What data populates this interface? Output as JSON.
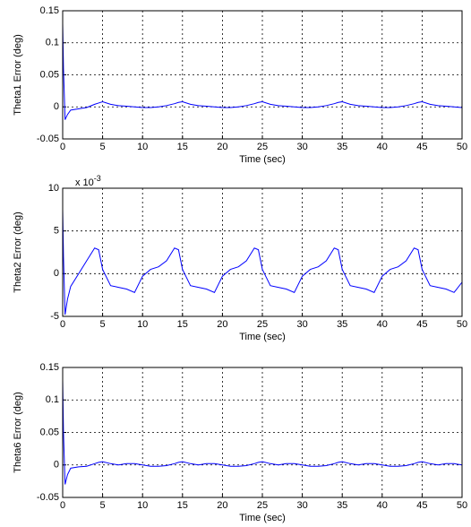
{
  "chart_data": [
    {
      "type": "line",
      "ylabel": "Theta1 Error (deg)",
      "xlabel": "Time (sec)",
      "color": "#0000ff",
      "grid": true,
      "xlim": [
        0,
        50
      ],
      "xticks": [
        0,
        5,
        10,
        15,
        20,
        25,
        30,
        35,
        40,
        45,
        50
      ],
      "ylim": [
        -0.05,
        0.15
      ],
      "yticks": [
        -0.05,
        0,
        0.05,
        0.1,
        0.15
      ],
      "x": [
        0,
        0.1,
        0.3,
        0.6,
        1,
        2,
        3,
        4,
        4.5,
        5,
        6,
        7,
        8,
        9,
        10,
        11,
        12,
        13,
        14,
        14.5,
        15,
        16,
        17,
        18,
        19,
        20,
        21,
        22,
        23,
        24,
        24.5,
        25,
        26,
        27,
        28,
        29,
        30,
        31,
        32,
        33,
        34,
        34.5,
        35,
        36,
        37,
        38,
        39,
        40,
        41,
        42,
        43,
        44,
        44.5,
        45,
        46,
        47,
        48,
        49,
        50
      ],
      "values": [
        0.13,
        0.06,
        -0.02,
        -0.012,
        -0.005,
        -0.003,
        -0.001,
        0.004,
        0.006,
        0.008,
        0.004,
        0.002,
        0.001,
        0,
        -0.001,
        -0.001,
        0,
        0.002,
        0.005,
        0.007,
        0.008,
        0.004,
        0.002,
        0.001,
        0,
        -0.001,
        -0.001,
        0,
        0.002,
        0.005,
        0.007,
        0.008,
        0.004,
        0.002,
        0.001,
        0,
        -0.001,
        -0.001,
        0,
        0.002,
        0.005,
        0.007,
        0.008,
        0.004,
        0.002,
        0.001,
        0,
        -0.001,
        -0.001,
        0,
        0.002,
        0.005,
        0.007,
        0.008,
        0.004,
        0.002,
        0.001,
        0,
        -0.001
      ]
    },
    {
      "type": "line",
      "ylabel": "Theta2 Error (deg)",
      "xlabel": "Time (sec)",
      "color": "#0000ff",
      "grid": true,
      "multiplier": "x 10",
      "multiplier_exponent": "-3",
      "xlim": [
        0,
        50
      ],
      "xticks": [
        0,
        5,
        10,
        15,
        20,
        25,
        30,
        35,
        40,
        45,
        50
      ],
      "ylim": [
        -5,
        10
      ],
      "yticks": [
        -5,
        0,
        5,
        10
      ],
      "x": [
        0,
        0.1,
        0.3,
        0.6,
        1,
        2,
        3,
        4,
        4.5,
        5,
        6,
        7,
        8,
        9,
        10,
        11,
        12,
        13,
        14,
        14.5,
        15,
        16,
        17,
        18,
        19,
        20,
        21,
        22,
        23,
        24,
        24.5,
        25,
        26,
        27,
        28,
        29,
        30,
        31,
        32,
        33,
        34,
        34.5,
        35,
        36,
        37,
        38,
        39,
        40,
        41,
        42,
        43,
        44,
        44.5,
        45,
        46,
        47,
        48,
        49,
        50
      ],
      "values": [
        7.5,
        2,
        -4.8,
        -3,
        -1.5,
        0,
        1.5,
        3.0,
        2.8,
        0.5,
        -1.4,
        -1.6,
        -1.8,
        -2.2,
        -0.3,
        0.5,
        0.8,
        1.5,
        3.0,
        2.8,
        0.5,
        -1.4,
        -1.6,
        -1.8,
        -2.2,
        -0.3,
        0.5,
        0.8,
        1.5,
        3.0,
        2.8,
        0.5,
        -1.4,
        -1.6,
        -1.8,
        -2.2,
        -0.3,
        0.5,
        0.8,
        1.5,
        3.0,
        2.8,
        0.5,
        -1.4,
        -1.6,
        -1.8,
        -2.2,
        -0.3,
        0.5,
        0.8,
        1.5,
        3.0,
        2.8,
        0.5,
        -1.4,
        -1.6,
        -1.8,
        -2.2,
        -1.0
      ]
    },
    {
      "type": "line",
      "ylabel": "Theta6 Error (deg)",
      "xlabel": "Time (sec)",
      "color": "#0000ff",
      "grid": true,
      "xlim": [
        0,
        50
      ],
      "xticks": [
        0,
        5,
        10,
        15,
        20,
        25,
        30,
        35,
        40,
        45,
        50
      ],
      "ylim": [
        -0.05,
        0.15
      ],
      "yticks": [
        -0.05,
        0,
        0.05,
        0.1,
        0.15
      ],
      "x": [
        0,
        0.1,
        0.3,
        0.6,
        1,
        2,
        3,
        4,
        4.5,
        5,
        6,
        7,
        8,
        9,
        10,
        11,
        12,
        13,
        14,
        14.5,
        15,
        16,
        17,
        18,
        19,
        20,
        21,
        22,
        23,
        24,
        24.5,
        25,
        26,
        27,
        28,
        29,
        30,
        31,
        32,
        33,
        34,
        34.5,
        35,
        36,
        37,
        38,
        39,
        40,
        41,
        42,
        43,
        44,
        44.5,
        45,
        46,
        47,
        48,
        49,
        50
      ],
      "values": [
        0.13,
        0.05,
        -0.03,
        -0.015,
        -0.005,
        -0.003,
        -0.002,
        0.002,
        0.004,
        0.005,
        0.002,
        0,
        0.002,
        0.002,
        0,
        -0.002,
        -0.002,
        -0.001,
        0.002,
        0.004,
        0.005,
        0.002,
        0,
        0.002,
        0.002,
        0,
        -0.002,
        -0.002,
        -0.001,
        0.002,
        0.004,
        0.005,
        0.002,
        0,
        0.002,
        0.002,
        0,
        -0.002,
        -0.002,
        -0.001,
        0.002,
        0.004,
        0.005,
        0.002,
        0,
        0.002,
        0.002,
        0,
        -0.002,
        -0.002,
        -0.001,
        0.002,
        0.004,
        0.005,
        0.002,
        0,
        0.002,
        0.002,
        0
      ]
    }
  ]
}
